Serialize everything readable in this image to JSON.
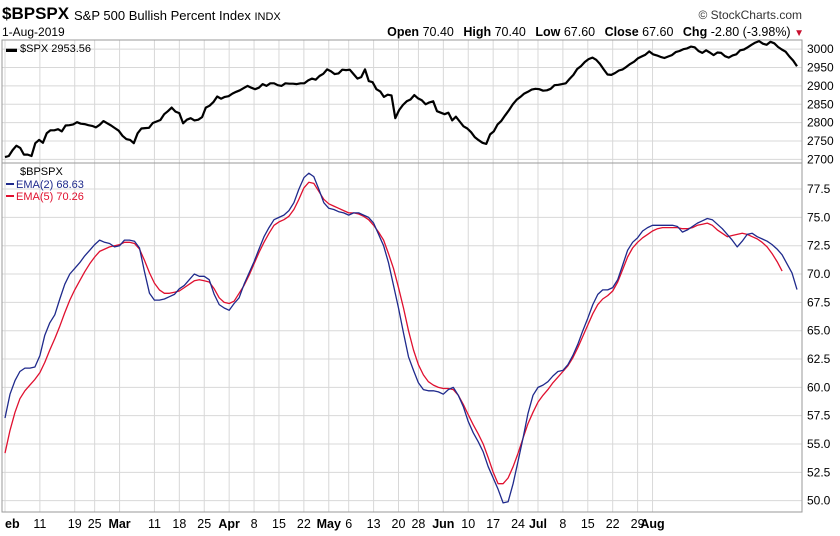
{
  "header": {
    "symbol": "$BPSPX",
    "name": "S&P 500 Bullish Percent Index",
    "exchange": "INDX",
    "source": "© StockCharts.com",
    "date": "1-Aug-2019",
    "open_label": "Open",
    "open": "70.40",
    "high_label": "High",
    "high": "70.40",
    "low_label": "Low",
    "low": "67.60",
    "close_label": "Close",
    "close": "67.60",
    "chg_label": "Chg",
    "chg": "-2.80 (-3.98%)",
    "down_arrow": "▼"
  },
  "colors": {
    "spx": "#000000",
    "ema2": "#1f2a8c",
    "ema5": "#e0102f",
    "grid": "#d8d8d8",
    "border": "#9a9a9a"
  },
  "chart_data": [
    {
      "type": "line",
      "legend": "$SPX 2953.56",
      "y_ticks": [
        2700,
        2750,
        2800,
        2850,
        2900,
        2950,
        3000
      ],
      "ylim": [
        2690,
        3025
      ],
      "series": [
        {
          "name": "$SPX",
          "values": [
            2706,
            2709,
            2725,
            2737,
            2731,
            2713,
            2713,
            2709,
            2744,
            2753,
            2745,
            2771,
            2779,
            2779,
            2782,
            2776,
            2792,
            2793,
            2795,
            2801,
            2797,
            2796,
            2793,
            2791,
            2787,
            2794,
            2804,
            2798,
            2792,
            2785,
            2778,
            2764,
            2755,
            2753,
            2744,
            2771,
            2784,
            2785,
            2786,
            2799,
            2803,
            2807,
            2823,
            2831,
            2841,
            2830,
            2826,
            2798,
            2808,
            2812,
            2806,
            2808,
            2815,
            2841,
            2846,
            2856,
            2871,
            2865,
            2870,
            2872,
            2879,
            2884,
            2888,
            2894,
            2900,
            2895,
            2891,
            2895,
            2905,
            2900,
            2907,
            2907,
            2902,
            2900,
            2907,
            2906,
            2906,
            2905,
            2907,
            2907,
            2915,
            2920,
            2917,
            2927,
            2933,
            2945,
            2940,
            2932,
            2934,
            2944,
            2943,
            2944,
            2932,
            2920,
            2924,
            2945,
            2913,
            2910,
            2891,
            2885,
            2870,
            2876,
            2874,
            2812,
            2834,
            2848,
            2858,
            2863,
            2875,
            2866,
            2861,
            2850,
            2855,
            2858,
            2831,
            2827,
            2823,
            2827,
            2806,
            2816,
            2803,
            2790,
            2784,
            2774,
            2760,
            2752,
            2745,
            2742,
            2768,
            2776,
            2795,
            2805,
            2820,
            2834,
            2850,
            2862,
            2870,
            2879,
            2884,
            2890,
            2892,
            2891,
            2887,
            2888,
            2892,
            2902,
            2903,
            2905,
            2907,
            2919,
            2930,
            2946,
            2954,
            2965,
            2973,
            2977,
            2971,
            2960,
            2945,
            2931,
            2930,
            2935,
            2942,
            2945,
            2952,
            2960,
            2966,
            2975,
            2980,
            2985,
            2994,
            2986,
            2983,
            2979,
            2976,
            2980,
            2984,
            2992,
            2995,
            3000,
            3002,
            3007,
            3005,
            2995,
            2990,
            2997,
            2991,
            2984,
            2991,
            2990,
            2981,
            2977,
            2983,
            2986,
            2997,
            2999,
            3005,
            3012,
            3018,
            3022,
            3015,
            3012,
            3020,
            3016,
            3006,
            2999,
            2993,
            2980,
            2969,
            2953.56
          ]
        }
      ]
    },
    {
      "type": "line",
      "title": "$BPSPX",
      "y_ticks": [
        50.0,
        52.5,
        55.0,
        57.5,
        60.0,
        62.5,
        65.0,
        67.5,
        70.0,
        72.5,
        75.0,
        77.5
      ],
      "y_tick_labels": [
        "50.0",
        "52.5",
        "55.0",
        "57.5",
        "60.0",
        "62.5",
        "65.0",
        "67.5",
        "70.0",
        "72.5",
        "75.0",
        "77.5"
      ],
      "ylim": [
        49.0,
        79.8
      ],
      "series": [
        {
          "name": "EMA(2) 68.63",
          "values": [
            57.3,
            59.4,
            60.6,
            61.4,
            61.7,
            61.7,
            61.8,
            62.8,
            64.6,
            65.7,
            66.4,
            67.8,
            69.1,
            70.0,
            70.5,
            71.0,
            71.6,
            72.1,
            72.6,
            73.0,
            72.8,
            72.7,
            72.4,
            72.5,
            73.0,
            73.0,
            72.9,
            72.3,
            70.2,
            68.3,
            67.7,
            67.7,
            67.8,
            68.0,
            68.2,
            68.7,
            69.0,
            69.5,
            70.0,
            69.8,
            69.8,
            69.5,
            68.2,
            67.3,
            67.0,
            66.8,
            67.4,
            67.9,
            69.1,
            70.1,
            71.1,
            72.2,
            73.3,
            74.1,
            74.8,
            75.0,
            75.2,
            75.6,
            76.3,
            77.5,
            78.5,
            78.9,
            78.6,
            77.5,
            76.3,
            75.8,
            75.7,
            75.5,
            75.4,
            75.2,
            75.4,
            75.4,
            75.2,
            75.0,
            74.5,
            73.5,
            72.5,
            71.0,
            69.0,
            67.0,
            64.8,
            62.7,
            61.5,
            60.4,
            59.8,
            59.7,
            59.7,
            59.6,
            59.4,
            59.8,
            60.0,
            59.3,
            58.3,
            57.0,
            56.0,
            55.2,
            54.3,
            53.0,
            52.0,
            51.0,
            49.8,
            49.9,
            51.5,
            53.5,
            55.5,
            57.7,
            59.3,
            60.0,
            60.2,
            60.5,
            61.0,
            61.4,
            61.5,
            62.0,
            62.8,
            63.8,
            65.0,
            66.1,
            67.3,
            68.2,
            68.6,
            68.6,
            68.8,
            69.5,
            70.8,
            72.1,
            72.8,
            73.2,
            73.8,
            74.1,
            74.3,
            74.3,
            74.3,
            74.3,
            74.3,
            74.2,
            73.7,
            73.9,
            74.2,
            74.5,
            74.7,
            74.9,
            74.8,
            74.4,
            74.0,
            73.5,
            73.0,
            72.4,
            72.9,
            73.5,
            73.6,
            73.3,
            73.1,
            72.9,
            72.6,
            72.2,
            71.7,
            70.9,
            70.1,
            68.63
          ]
        },
        {
          "name": "EMA(5) 70.26",
          "values": [
            54.2,
            56.2,
            57.8,
            59.0,
            59.7,
            60.2,
            60.7,
            61.3,
            62.2,
            63.3,
            64.3,
            65.4,
            66.6,
            67.7,
            68.6,
            69.4,
            70.2,
            70.9,
            71.5,
            72.0,
            72.2,
            72.4,
            72.5,
            72.6,
            72.8,
            72.8,
            72.7,
            72.2,
            71.2,
            70.1,
            69.2,
            68.6,
            68.3,
            68.3,
            68.4,
            68.5,
            68.8,
            69.1,
            69.4,
            69.5,
            69.4,
            69.3,
            68.7,
            67.9,
            67.5,
            67.4,
            67.6,
            68.3,
            69.0,
            69.9,
            70.9,
            71.9,
            72.8,
            73.6,
            74.3,
            74.6,
            74.8,
            75.1,
            75.7,
            76.6,
            77.6,
            78.1,
            78.0,
            77.3,
            76.6,
            76.2,
            76.0,
            75.8,
            75.6,
            75.4,
            75.4,
            75.3,
            75.1,
            74.8,
            74.3,
            73.7,
            73.0,
            71.8,
            70.5,
            68.8,
            67.0,
            65.0,
            63.3,
            62.0,
            61.1,
            60.5,
            60.2,
            60.0,
            59.9,
            59.9,
            59.8,
            59.3,
            58.5,
            57.6,
            56.7,
            55.9,
            55.0,
            53.8,
            52.5,
            51.5,
            51.5,
            52.0,
            53.0,
            54.2,
            55.5,
            56.8,
            57.8,
            58.7,
            59.3,
            59.8,
            60.4,
            60.9,
            61.4,
            61.9,
            62.6,
            63.5,
            64.5,
            65.5,
            66.5,
            67.3,
            67.8,
            68.1,
            68.5,
            69.3,
            70.4,
            71.5,
            72.3,
            72.8,
            73.2,
            73.5,
            73.8,
            74.0,
            74.1,
            74.1,
            74.1,
            74.1,
            74.0,
            74.0,
            74.1,
            74.3,
            74.4,
            74.5,
            74.3,
            73.9,
            73.6,
            73.3,
            73.4,
            73.5,
            73.6,
            73.5,
            73.3,
            73.1,
            72.8,
            72.4,
            71.8,
            71.1,
            70.26
          ]
        }
      ]
    }
  ],
  "x_axis": {
    "labels": [
      {
        "text": "eb",
        "bold": true,
        "i": 0
      },
      {
        "text": "11",
        "i": 7
      },
      {
        "text": "19",
        "i": 14
      },
      {
        "text": "25",
        "i": 18
      },
      {
        "text": "Mar",
        "bold": true,
        "i": 23
      },
      {
        "text": "11",
        "i": 30
      },
      {
        "text": "18",
        "i": 35
      },
      {
        "text": "25",
        "i": 40
      },
      {
        "text": "Apr",
        "bold": true,
        "i": 45
      },
      {
        "text": "8",
        "i": 50
      },
      {
        "text": "15",
        "i": 55
      },
      {
        "text": "22",
        "i": 60
      },
      {
        "text": "May",
        "bold": true,
        "i": 65
      },
      {
        "text": "6",
        "i": 69
      },
      {
        "text": "13",
        "i": 74
      },
      {
        "text": "20",
        "i": 79
      },
      {
        "text": "28",
        "i": 83
      },
      {
        "text": "Jun",
        "bold": true,
        "i": 88
      },
      {
        "text": "10",
        "i": 93
      },
      {
        "text": "17",
        "i": 98
      },
      {
        "text": "24",
        "i": 103
      },
      {
        "text": "Jul",
        "bold": true,
        "i": 107
      },
      {
        "text": "8",
        "i": 112
      },
      {
        "text": "15",
        "i": 117
      },
      {
        "text": "22",
        "i": 122
      },
      {
        "text": "29",
        "i": 127
      },
      {
        "text": "Aug",
        "bold": true,
        "i": 130
      }
    ]
  }
}
